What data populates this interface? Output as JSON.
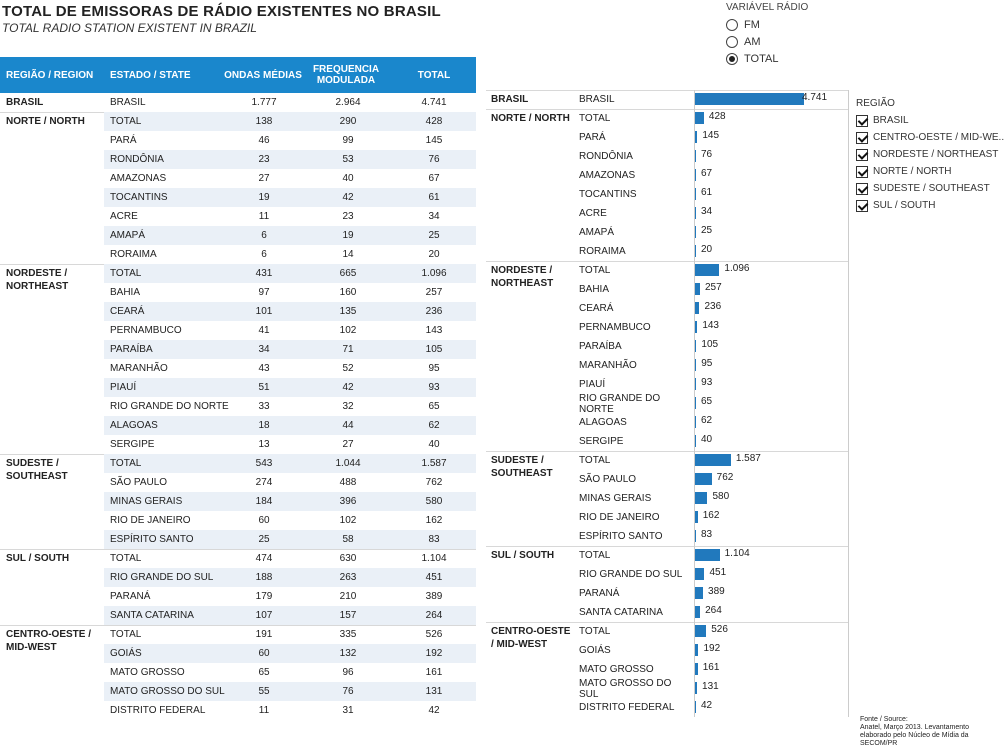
{
  "header": {
    "title": "TOTAL DE EMISSORAS DE RÁDIO EXISTENTES NO BRASIL",
    "subtitle": "TOTAL RADIO STATION EXISTENT IN BRAZIL"
  },
  "radio_filter": {
    "title": "VARIÁVEL RÁDIO",
    "options": [
      "FM",
      "AM",
      "TOTAL"
    ],
    "selected": "TOTAL"
  },
  "table": {
    "columns": [
      "REGIÃO / REGION",
      "ESTADO / STATE",
      "ONDAS MÉDIAS",
      "FREQUENCIA MODULADA",
      "TOTAL"
    ]
  },
  "legend": {
    "title": "REGIÃO",
    "items": [
      "BRASIL",
      "CENTRO-OESTE / MID-WE..",
      "NORDESTE / NORTHEAST",
      "NORTE / NORTH",
      "SUDESTE / SOUTHEAST",
      "SUL / SOUTH"
    ]
  },
  "source": {
    "lines": [
      "Fonte / Source:",
      "Anatel, Março 2013. Levantamento",
      "elaborado pelo Núcleo de Mídia da",
      "SECOM/PR"
    ]
  },
  "chart_data": {
    "type": "bar",
    "orientation": "horizontal",
    "xlim": [
      0,
      4741
    ],
    "groups": [
      {
        "region": "BRASIL",
        "rows": [
          {
            "state": "BRASIL",
            "am": "1.777",
            "fm": "2.964",
            "total": 4741,
            "total_label": "4.741"
          }
        ]
      },
      {
        "region": "NORTE / NORTH",
        "rows": [
          {
            "state": "TOTAL",
            "am": "138",
            "fm": "290",
            "total": 428,
            "total_label": "428"
          },
          {
            "state": "PARÁ",
            "am": "46",
            "fm": "99",
            "total": 145,
            "total_label": "145"
          },
          {
            "state": "RONDÔNIA",
            "am": "23",
            "fm": "53",
            "total": 76,
            "total_label": "76"
          },
          {
            "state": "AMAZONAS",
            "am": "27",
            "fm": "40",
            "total": 67,
            "total_label": "67"
          },
          {
            "state": "TOCANTINS",
            "am": "19",
            "fm": "42",
            "total": 61,
            "total_label": "61"
          },
          {
            "state": "ACRE",
            "am": "11",
            "fm": "23",
            "total": 34,
            "total_label": "34"
          },
          {
            "state": "AMAPÁ",
            "am": "6",
            "fm": "19",
            "total": 25,
            "total_label": "25"
          },
          {
            "state": "RORAIMA",
            "am": "6",
            "fm": "14",
            "total": 20,
            "total_label": "20"
          }
        ]
      },
      {
        "region": "NORDESTE / NORTHEAST",
        "rows": [
          {
            "state": "TOTAL",
            "am": "431",
            "fm": "665",
            "total": 1096,
            "total_label": "1.096"
          },
          {
            "state": "BAHIA",
            "am": "97",
            "fm": "160",
            "total": 257,
            "total_label": "257"
          },
          {
            "state": "CEARÁ",
            "am": "101",
            "fm": "135",
            "total": 236,
            "total_label": "236"
          },
          {
            "state": "PERNAMBUCO",
            "am": "41",
            "fm": "102",
            "total": 143,
            "total_label": "143"
          },
          {
            "state": "PARAÍBA",
            "am": "34",
            "fm": "71",
            "total": 105,
            "total_label": "105"
          },
          {
            "state": "MARANHÃO",
            "am": "43",
            "fm": "52",
            "total": 95,
            "total_label": "95"
          },
          {
            "state": "PIAUÍ",
            "am": "51",
            "fm": "42",
            "total": 93,
            "total_label": "93"
          },
          {
            "state": "RIO GRANDE DO NORTE",
            "am": "33",
            "fm": "32",
            "total": 65,
            "total_label": "65"
          },
          {
            "state": "ALAGOAS",
            "am": "18",
            "fm": "44",
            "total": 62,
            "total_label": "62"
          },
          {
            "state": "SERGIPE",
            "am": "13",
            "fm": "27",
            "total": 40,
            "total_label": "40"
          }
        ]
      },
      {
        "region": "SUDESTE / SOUTHEAST",
        "rows": [
          {
            "state": "TOTAL",
            "am": "543",
            "fm": "1.044",
            "total": 1587,
            "total_label": "1.587"
          },
          {
            "state": "SÃO PAULO",
            "am": "274",
            "fm": "488",
            "total": 762,
            "total_label": "762"
          },
          {
            "state": "MINAS GERAIS",
            "am": "184",
            "fm": "396",
            "total": 580,
            "total_label": "580"
          },
          {
            "state": "RIO DE JANEIRO",
            "am": "60",
            "fm": "102",
            "total": 162,
            "total_label": "162"
          },
          {
            "state": "ESPÍRITO SANTO",
            "am": "25",
            "fm": "58",
            "total": 83,
            "total_label": "83"
          }
        ]
      },
      {
        "region": "SUL / SOUTH",
        "rows": [
          {
            "state": "TOTAL",
            "am": "474",
            "fm": "630",
            "total": 1104,
            "total_label": "1.104"
          },
          {
            "state": "RIO GRANDE DO SUL",
            "am": "188",
            "fm": "263",
            "total": 451,
            "total_label": "451"
          },
          {
            "state": "PARANÁ",
            "am": "179",
            "fm": "210",
            "total": 389,
            "total_label": "389"
          },
          {
            "state": "SANTA CATARINA",
            "am": "107",
            "fm": "157",
            "total": 264,
            "total_label": "264"
          }
        ]
      },
      {
        "region": "CENTRO-OESTE / MID-WEST",
        "rows": [
          {
            "state": "TOTAL",
            "am": "191",
            "fm": "335",
            "total": 526,
            "total_label": "526"
          },
          {
            "state": "GOIÁS",
            "am": "60",
            "fm": "132",
            "total": 192,
            "total_label": "192"
          },
          {
            "state": "MATO GROSSO",
            "am": "65",
            "fm": "96",
            "total": 161,
            "total_label": "161"
          },
          {
            "state": "MATO GROSSO DO SUL",
            "am": "55",
            "fm": "76",
            "total": 131,
            "total_label": "131"
          },
          {
            "state": "DISTRITO FEDERAL",
            "am": "11",
            "fm": "31",
            "total": 42,
            "total_label": "42"
          }
        ]
      }
    ]
  }
}
